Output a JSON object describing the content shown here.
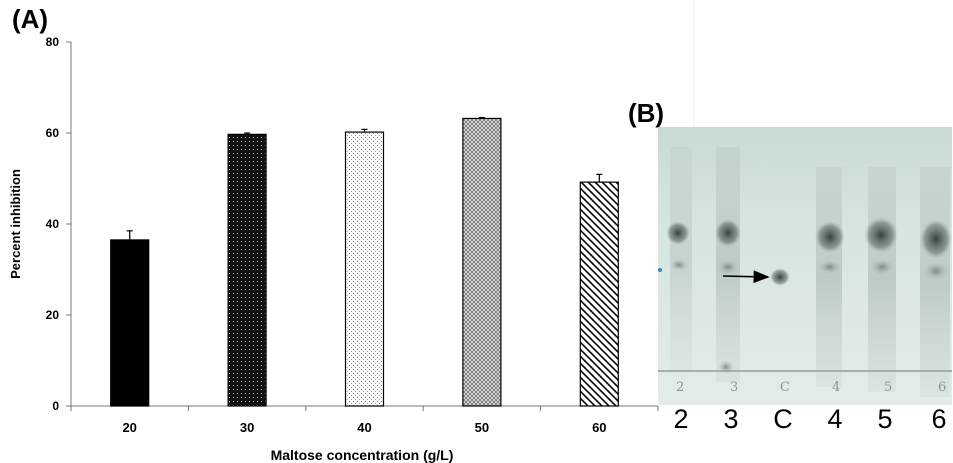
{
  "panel_a_label": "(A)",
  "panel_b_label": "(B)",
  "chart_data": {
    "type": "bar",
    "xlabel": "Maltose concentration (g/L)",
    "ylabel": "Percent inhibition",
    "categories": [
      "20",
      "30",
      "40",
      "50",
      "60"
    ],
    "values": [
      36.5,
      59.7,
      60.2,
      63.2,
      49.2
    ],
    "errors": [
      2.0,
      0.3,
      0.6,
      0.2,
      1.7
    ],
    "ylim": [
      0,
      80
    ],
    "yticks": [
      0,
      20,
      40,
      60,
      80
    ],
    "grid": false,
    "legend": "none"
  },
  "tlc": {
    "lanes": [
      "2",
      "3",
      "C",
      "4",
      "5",
      "6"
    ],
    "pencil_marks": [
      "2",
      "3",
      "C",
      "4",
      "5",
      "6"
    ]
  }
}
